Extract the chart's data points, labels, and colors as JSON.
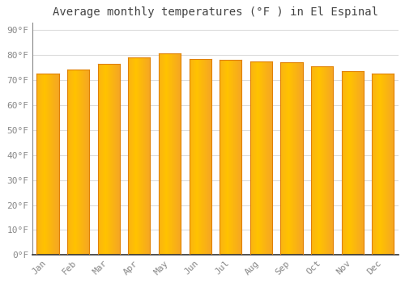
{
  "title": "Average monthly temperatures (°F ) in El Espinal",
  "months": [
    "Jan",
    "Feb",
    "Mar",
    "Apr",
    "May",
    "Jun",
    "Jul",
    "Aug",
    "Sep",
    "Oct",
    "Nov",
    "Dec"
  ],
  "values": [
    72.5,
    74.0,
    76.5,
    79.0,
    80.5,
    78.5,
    78.0,
    77.5,
    77.0,
    75.5,
    73.5,
    72.5
  ],
  "bar_color_center": "#FFC200",
  "bar_color_edge": "#F5A623",
  "bar_color_dark_edge": "#E08000",
  "background_color": "#FFFFFF",
  "plot_bg_color": "#FFFFFF",
  "grid_color": "#DDDDDD",
  "ytick_labels": [
    "0°F",
    "10°F",
    "20°F",
    "30°F",
    "40°F",
    "50°F",
    "60°F",
    "70°F",
    "80°F",
    "90°F"
  ],
  "ytick_values": [
    0,
    10,
    20,
    30,
    40,
    50,
    60,
    70,
    80,
    90
  ],
  "ylim": [
    0,
    93
  ],
  "title_fontsize": 10,
  "tick_fontsize": 8,
  "font_family": "monospace"
}
